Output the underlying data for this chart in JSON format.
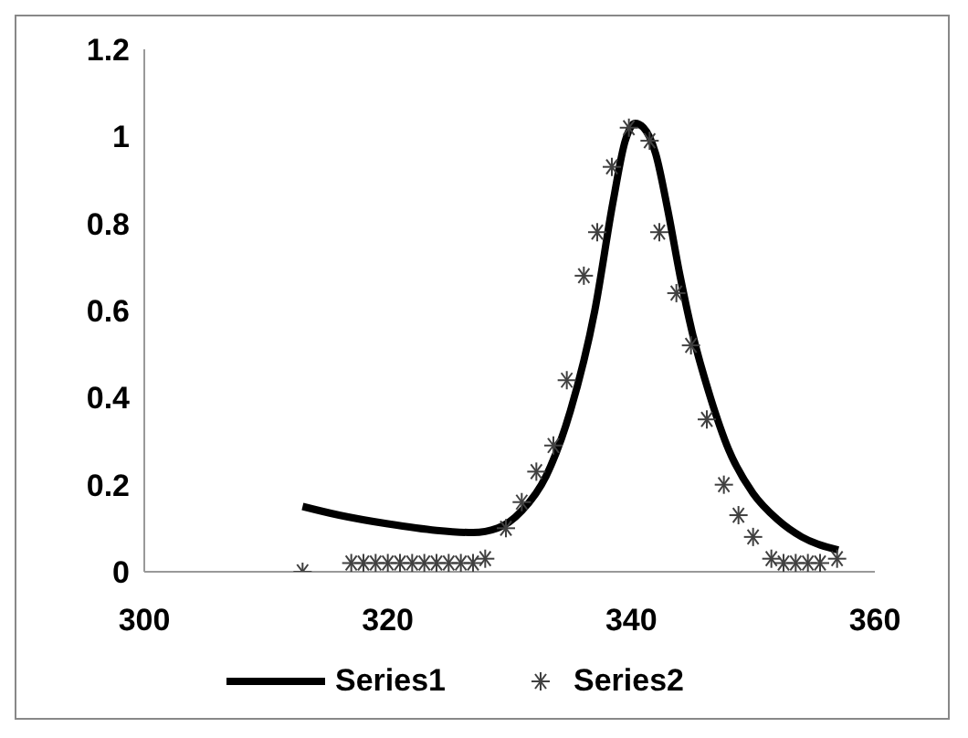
{
  "chart_data": {
    "type": "line",
    "xlim": [
      300,
      360
    ],
    "xticks": [
      300,
      320,
      340,
      360
    ],
    "ylim": [
      0,
      1.2
    ],
    "yticks": [
      0,
      0.2,
      0.4,
      0.6,
      0.8,
      1,
      1.2
    ],
    "grid": false,
    "legend": "bottom",
    "series": [
      {
        "name": "Series1",
        "color": "#000000",
        "marker": "none",
        "x": [
          313,
          316,
          320,
          324,
          327,
          329,
          331,
          333,
          335,
          337,
          338.5,
          339.5,
          340.3,
          341,
          342,
          343,
          344,
          345,
          346.5,
          348,
          350,
          352,
          354,
          357
        ],
        "values": [
          0.15,
          0.13,
          0.11,
          0.095,
          0.09,
          0.1,
          0.14,
          0.22,
          0.37,
          0.6,
          0.85,
          0.99,
          1.03,
          1.02,
          0.96,
          0.83,
          0.68,
          0.55,
          0.4,
          0.28,
          0.18,
          0.12,
          0.08,
          0.05
        ]
      },
      {
        "name": "Series2",
        "type": "scatter",
        "color": "#404040",
        "marker": "cross",
        "x": [
          313,
          317,
          318,
          319,
          320,
          321,
          322,
          323,
          324,
          325,
          326,
          327,
          328,
          329.7,
          331,
          332.2,
          333.6,
          334.7,
          336.1,
          337.2,
          338.4,
          339.8,
          341.5,
          342.3,
          343.7,
          344.9,
          346.2,
          347.6,
          348.8,
          350,
          351.5,
          352.5,
          353.5,
          354.5,
          355.5,
          356.9
        ],
        "values": [
          0,
          0.02,
          0.02,
          0.02,
          0.02,
          0.02,
          0.02,
          0.02,
          0.02,
          0.02,
          0.02,
          0.02,
          0.03,
          0.1,
          0.16,
          0.23,
          0.29,
          0.44,
          0.68,
          0.78,
          0.93,
          1.02,
          0.99,
          0.78,
          0.64,
          0.52,
          0.35,
          0.2,
          0.13,
          0.08,
          0.03,
          0.02,
          0.02,
          0.02,
          0.02,
          0.03
        ]
      }
    ]
  }
}
